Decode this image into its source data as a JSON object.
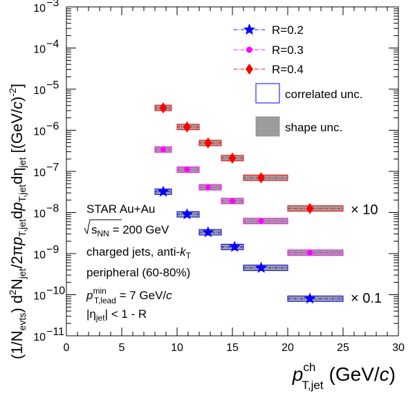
{
  "chart_data": {
    "type": "scatter",
    "x_axis": {
      "range": [
        0,
        30
      ],
      "ticks": [
        "0",
        "5",
        "10",
        "15",
        "20",
        "25",
        "30"
      ],
      "title_main": "p",
      "title_sup": "ch",
      "title_sub": "T,jet",
      "title_unit": "(GeV/c)"
    },
    "y_axis": {
      "scale": "log",
      "range": [
        1e-11,
        0.001
      ],
      "ticks": [
        {
          "base": "10",
          "exp": "−11"
        },
        {
          "base": "10",
          "exp": "−10"
        },
        {
          "base": "10",
          "exp": "−9"
        },
        {
          "base": "10",
          "exp": "−8"
        },
        {
          "base": "10",
          "exp": "−7"
        },
        {
          "base": "10",
          "exp": "−6"
        },
        {
          "base": "10",
          "exp": "−5"
        },
        {
          "base": "10",
          "exp": "−4"
        },
        {
          "base": "10",
          "exp": "−3"
        }
      ],
      "title": "(1/N_evts) d²N_jet/2πp_T,jet dp_T,jet dη_jet [(GeV/c)⁻²]"
    },
    "legend": {
      "placement": "top-right",
      "entries": [
        {
          "label": "R=0.2",
          "color": "#0000ff",
          "marker": "star"
        },
        {
          "label": "R=0.3",
          "color": "#ff00ff",
          "marker": "circle"
        },
        {
          "label": "R=0.4",
          "color": "#ff0000",
          "marker": "diamond"
        },
        {
          "label": "correlated unc.",
          "marker": "open-box"
        },
        {
          "label": "shape unc.",
          "marker": "filled-box"
        }
      ]
    },
    "series": [
      {
        "name": "R=0.2",
        "color": "#0000ff",
        "marker": "star",
        "points": [
          {
            "x": 8.75,
            "xmin": 8.0,
            "xmax": 9.5,
            "y": 3.2e-08
          },
          {
            "x": 10.9,
            "xmin": 10.0,
            "xmax": 12.0,
            "y": 9e-09
          },
          {
            "x": 12.8,
            "xmin": 12.0,
            "xmax": 14.0,
            "y": 3.3e-09
          },
          {
            "x": 15.2,
            "xmin": 14.0,
            "xmax": 16.0,
            "y": 1.45e-09
          },
          {
            "x": 17.6,
            "xmin": 16.0,
            "xmax": 20.0,
            "y": 4.5e-10
          },
          {
            "x": 22.0,
            "xmin": 20.0,
            "xmax": 25.0,
            "y": 8e-11
          }
        ]
      },
      {
        "name": "R=0.3",
        "color": "#ff00ff",
        "marker": "circle",
        "points": [
          {
            "x": 8.75,
            "xmin": 8.0,
            "xmax": 9.5,
            "y": 3.4e-07
          },
          {
            "x": 10.9,
            "xmin": 10.0,
            "xmax": 12.0,
            "y": 1.1e-07
          },
          {
            "x": 12.8,
            "xmin": 12.0,
            "xmax": 14.0,
            "y": 4.1e-08
          },
          {
            "x": 15.0,
            "xmin": 14.0,
            "xmax": 16.0,
            "y": 1.9e-08
          },
          {
            "x": 17.6,
            "xmin": 16.0,
            "xmax": 20.0,
            "y": 6.2e-09
          },
          {
            "x": 22.0,
            "xmin": 20.0,
            "xmax": 25.0,
            "y": 1.05e-09
          }
        ]
      },
      {
        "name": "R=0.4",
        "color": "#ff0000",
        "marker": "diamond",
        "points": [
          {
            "x": 8.75,
            "xmin": 8.0,
            "xmax": 9.5,
            "y": 3.5e-06
          },
          {
            "x": 10.9,
            "xmin": 10.0,
            "xmax": 12.0,
            "y": 1.2e-06
          },
          {
            "x": 12.8,
            "xmin": 12.0,
            "xmax": 14.0,
            "y": 4.9e-07
          },
          {
            "x": 15.0,
            "xmin": 14.0,
            "xmax": 16.0,
            "y": 2.1e-07
          },
          {
            "x": 17.6,
            "xmin": 16.0,
            "xmax": 20.0,
            "y": 7e-08
          },
          {
            "x": 22.0,
            "xmin": 20.0,
            "xmax": 25.0,
            "y": 1.25e-08
          }
        ]
      }
    ],
    "scale_labels": [
      {
        "text": "× 10",
        "series": "R=0.4"
      },
      {
        "text": "× 0.1",
        "series": "R=0.2"
      }
    ],
    "annotations": [
      "STAR Au+Au",
      "√s_NN = 200 GeV",
      "charged jets, anti-k_T",
      "peripheral (60-80%)",
      "p_T,lead^min = 7 GeV/c",
      "|η_jet| < 1 - R"
    ]
  }
}
